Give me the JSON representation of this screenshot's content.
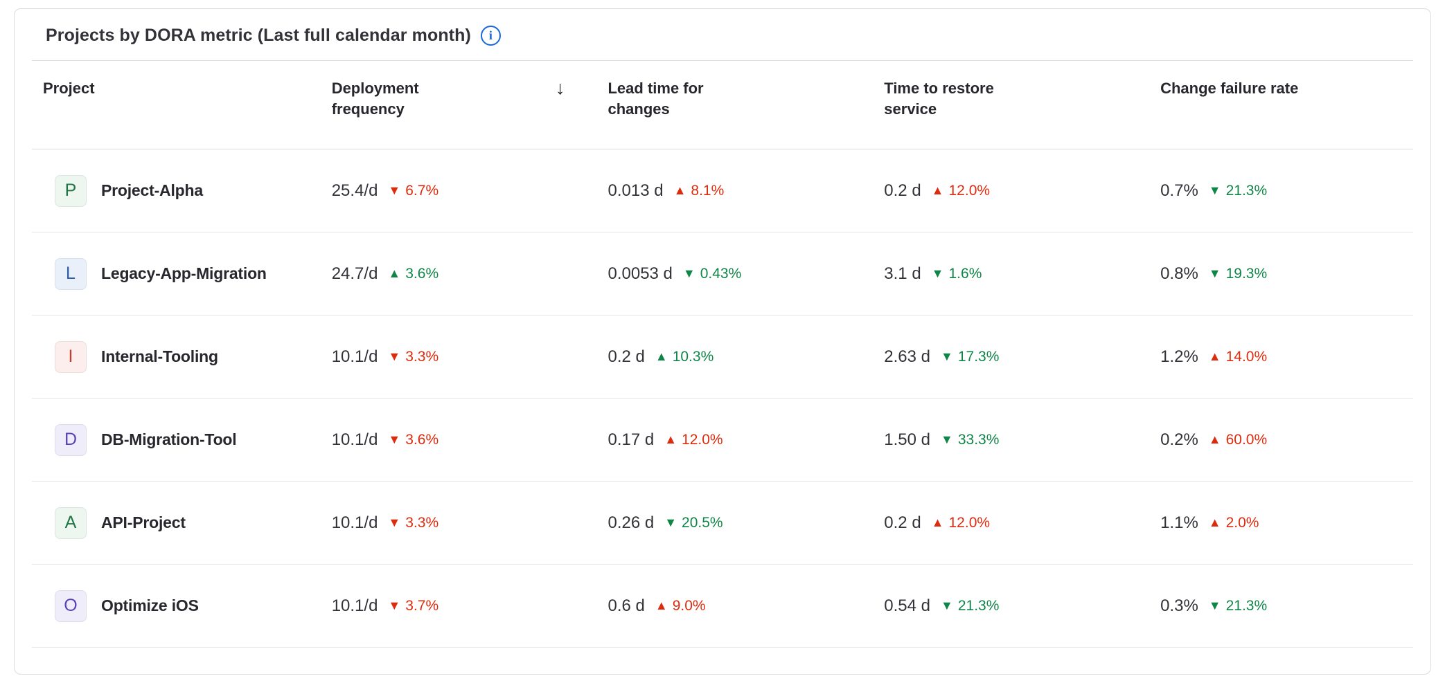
{
  "card": {
    "title": "Projects by DORA metric (Last full calendar month)"
  },
  "icons": {
    "info": "i",
    "sort_desc": "↓"
  },
  "colors": {
    "positive_green": "#108548",
    "negative_red": "#dd2b0e",
    "info_blue": "#1868db"
  },
  "table": {
    "columns": [
      {
        "label": "Project"
      },
      {
        "label": "Deployment frequency",
        "sorted": "descending"
      },
      {
        "label": "Lead time for changes"
      },
      {
        "label": "Time to restore service"
      },
      {
        "label": "Change failure rate"
      }
    ],
    "rows": [
      {
        "avatar": {
          "initial": "P",
          "color": "green"
        },
        "name": "Project-Alpha",
        "df": {
          "value": "25.4/d",
          "arrow": "▼",
          "delta": "6.7%",
          "sentiment": "bad"
        },
        "lt": {
          "value": "0.013 d",
          "arrow": "▲",
          "delta": "8.1%",
          "sentiment": "bad"
        },
        "ttr": {
          "value": "0.2 d",
          "arrow": "▲",
          "delta": "12.0%",
          "sentiment": "bad"
        },
        "cfr": {
          "value": "0.7%",
          "arrow": "▼",
          "delta": "21.3%",
          "sentiment": "good"
        }
      },
      {
        "avatar": {
          "initial": "L",
          "color": "blue"
        },
        "name": "Legacy-App-Migration",
        "df": {
          "value": "24.7/d",
          "arrow": "▲",
          "delta": "3.6%",
          "sentiment": "good"
        },
        "lt": {
          "value": "0.0053 d",
          "arrow": "▼",
          "delta": "0.43%",
          "sentiment": "good"
        },
        "ttr": {
          "value": "3.1 d",
          "arrow": "▼",
          "delta": "1.6%",
          "sentiment": "good"
        },
        "cfr": {
          "value": "0.8%",
          "arrow": "▼",
          "delta": "19.3%",
          "sentiment": "good"
        }
      },
      {
        "avatar": {
          "initial": "I",
          "color": "red"
        },
        "name": "Internal-Tooling",
        "df": {
          "value": "10.1/d",
          "arrow": "▼",
          "delta": "3.3%",
          "sentiment": "bad"
        },
        "lt": {
          "value": "0.2 d",
          "arrow": "▲",
          "delta": "10.3%",
          "sentiment": "good"
        },
        "ttr": {
          "value": "2.63 d",
          "arrow": "▼",
          "delta": "17.3%",
          "sentiment": "good"
        },
        "cfr": {
          "value": "1.2%",
          "arrow": "▲",
          "delta": "14.0%",
          "sentiment": "bad"
        }
      },
      {
        "avatar": {
          "initial": "D",
          "color": "purple"
        },
        "name": "DB-Migration-Tool",
        "df": {
          "value": "10.1/d",
          "arrow": "▼",
          "delta": "3.6%",
          "sentiment": "bad"
        },
        "lt": {
          "value": "0.17 d",
          "arrow": "▲",
          "delta": "12.0%",
          "sentiment": "bad"
        },
        "ttr": {
          "value": "1.50 d",
          "arrow": "▼",
          "delta": "33.3%",
          "sentiment": "good"
        },
        "cfr": {
          "value": "0.2%",
          "arrow": "▲",
          "delta": "60.0%",
          "sentiment": "bad"
        }
      },
      {
        "avatar": {
          "initial": "A",
          "color": "green"
        },
        "name": "API-Project",
        "df": {
          "value": "10.1/d",
          "arrow": "▼",
          "delta": "3.3%",
          "sentiment": "bad"
        },
        "lt": {
          "value": "0.26 d",
          "arrow": "▼",
          "delta": "20.5%",
          "sentiment": "good"
        },
        "ttr": {
          "value": "0.2 d",
          "arrow": "▲",
          "delta": "12.0%",
          "sentiment": "bad"
        },
        "cfr": {
          "value": "1.1%",
          "arrow": "▲",
          "delta": "2.0%",
          "sentiment": "bad"
        }
      },
      {
        "avatar": {
          "initial": "O",
          "color": "purple"
        },
        "name": "Optimize iOS",
        "df": {
          "value": "10.1/d",
          "arrow": "▼",
          "delta": "3.7%",
          "sentiment": "bad"
        },
        "lt": {
          "value": "0.6 d",
          "arrow": "▲",
          "delta": "9.0%",
          "sentiment": "bad"
        },
        "ttr": {
          "value": "0.54 d",
          "arrow": "▼",
          "delta": "21.3%",
          "sentiment": "good"
        },
        "cfr": {
          "value": "0.3%",
          "arrow": "▼",
          "delta": "21.3%",
          "sentiment": "good"
        }
      }
    ]
  }
}
